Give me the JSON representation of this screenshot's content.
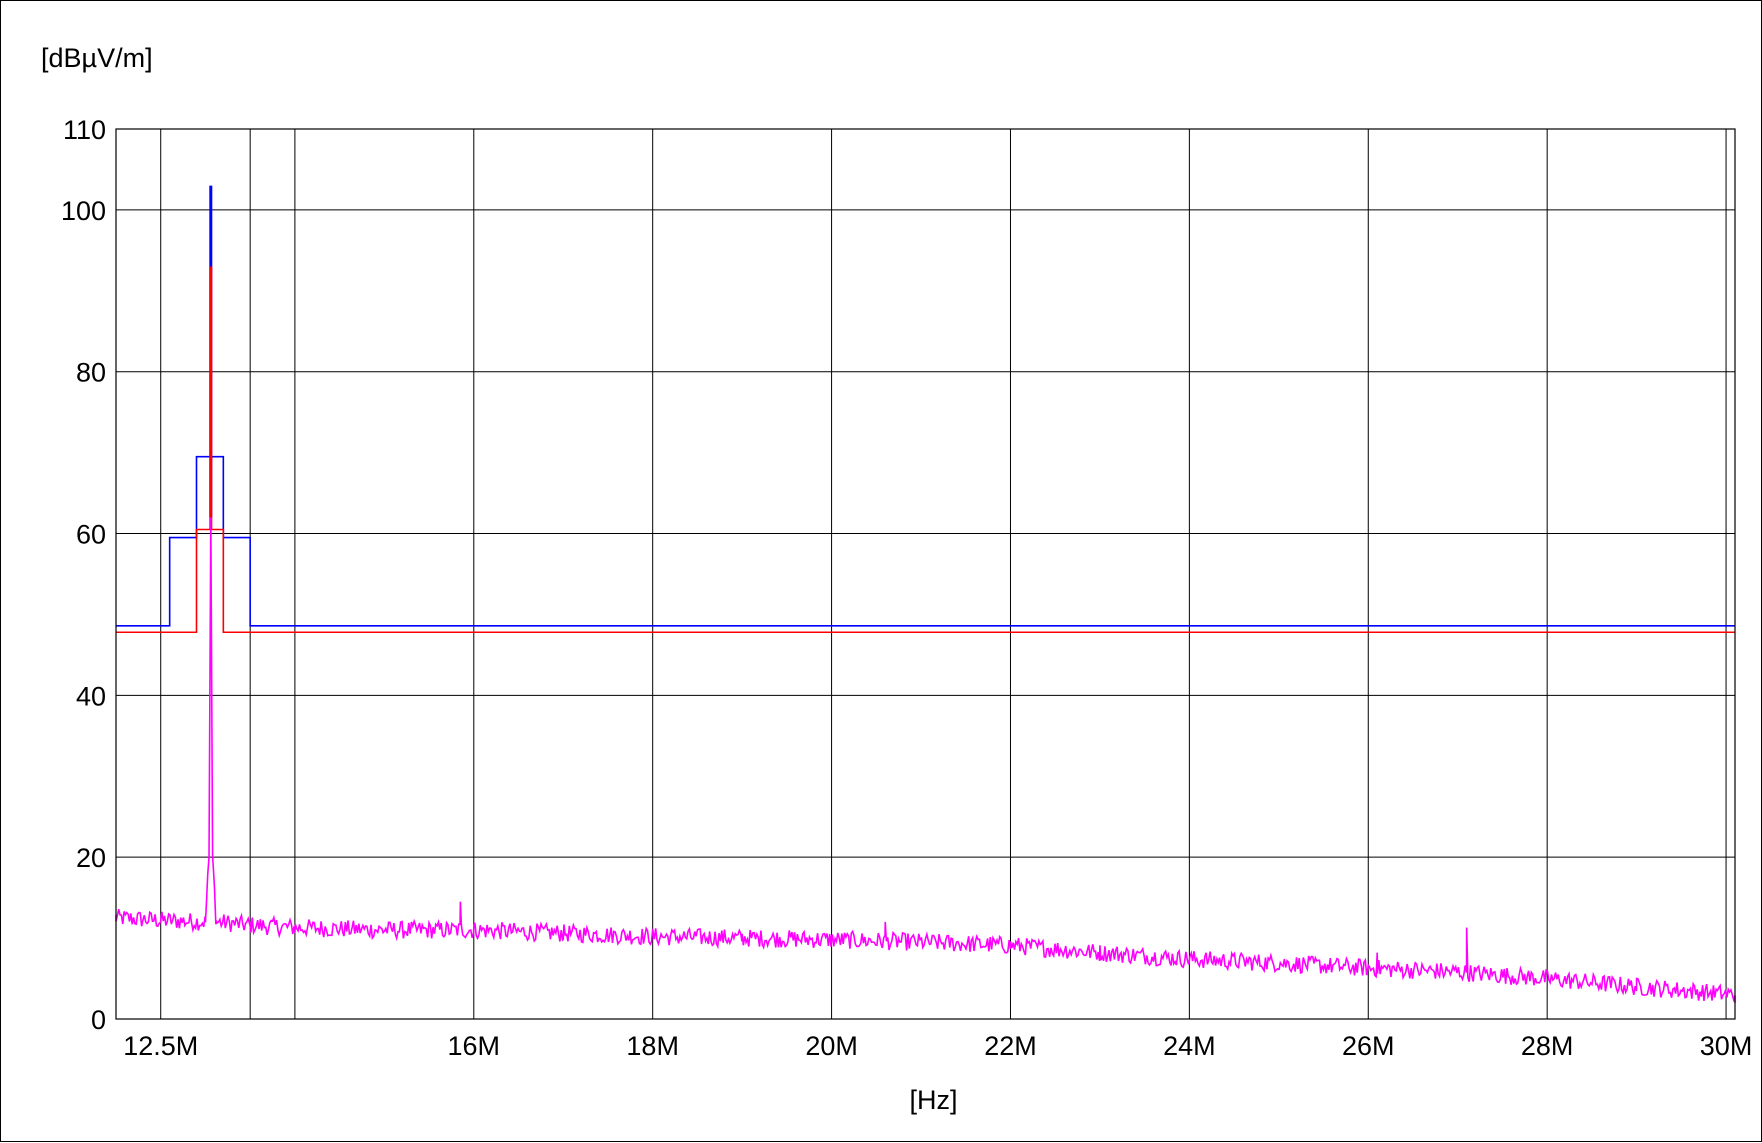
{
  "chart_data": {
    "type": "line",
    "title": "",
    "xlabel": "[Hz]",
    "ylabel": "[dBµV/m]",
    "xlim": [
      12000000,
      30100000
    ],
    "ylim": [
      0,
      110
    ],
    "grid": true,
    "x_ticks": [
      {
        "value": 12500000,
        "label": "12.5M"
      },
      {
        "value": 16000000,
        "label": "16M"
      },
      {
        "value": 18000000,
        "label": "18M"
      },
      {
        "value": 20000000,
        "label": "20M"
      },
      {
        "value": 22000000,
        "label": "22M"
      },
      {
        "value": 24000000,
        "label": "24M"
      },
      {
        "value": 26000000,
        "label": "26M"
      },
      {
        "value": 28000000,
        "label": "28M"
      },
      {
        "value": 30000000,
        "label": "30M"
      }
    ],
    "x_extra_gridlines": [
      13500000,
      14000000
    ],
    "y_ticks": [
      {
        "value": 0,
        "label": "0"
      },
      {
        "value": 20,
        "label": "20"
      },
      {
        "value": 40,
        "label": "40"
      },
      {
        "value": 60,
        "label": "60"
      },
      {
        "value": 80,
        "label": "80"
      },
      {
        "value": 100,
        "label": "100"
      },
      {
        "value": 110,
        "label": "110"
      }
    ],
    "series": [
      {
        "name": "",
        "color": "#0000ff",
        "x": [
          12000000,
          12600000,
          12600000,
          12900000,
          12900000,
          13200000,
          13200000,
          13500000,
          13500000,
          30100000
        ],
        "y": [
          48.6,
          48.6,
          59.5,
          59.5,
          69.5,
          69.5,
          59.5,
          59.5,
          48.6,
          48.6
        ]
      },
      {
        "name": "",
        "color": "#ff0000",
        "x": [
          12000000,
          12900000,
          12900000,
          13200000,
          13200000,
          30100000
        ],
        "y": [
          47.8,
          47.8,
          60.5,
          60.5,
          47.8,
          47.8
        ]
      },
      {
        "name": "",
        "color": "#0000ff",
        "x": [
          13060000,
          13060000
        ],
        "y": [
          62,
          103
        ]
      },
      {
        "name": "",
        "color": "#ff0000",
        "x": [
          13060000,
          13060000
        ],
        "y": [
          60.5,
          93
        ]
      },
      {
        "name": "",
        "color": "#ff00ff",
        "trace_points": 1200,
        "x": [
          12000000,
          12500000,
          13000000,
          13040000,
          13060000,
          13080000,
          13120000,
          13500000,
          14000000,
          15000000,
          16000000,
          17000000,
          18000000,
          19000000,
          20000000,
          21000000,
          22000000,
          23000000,
          24000000,
          25000000,
          26000000,
          27000000,
          28000000,
          29000000,
          30100000
        ],
        "y": [
          12.5,
          12.2,
          12.0,
          20.0,
          62.0,
          20.0,
          12.0,
          11.6,
          11.3,
          11.0,
          11.0,
          10.6,
          10.2,
          10.0,
          9.8,
          9.5,
          9.1,
          8.2,
          7.4,
          6.9,
          6.3,
          5.8,
          5.0,
          4.0,
          3.0
        ],
        "spikes": [
          {
            "x": 27100000,
            "y": 11.3
          },
          {
            "x": 15850000,
            "y": 14.5
          },
          {
            "x": 20600000,
            "y": 12.0
          },
          {
            "x": 26100000,
            "y": 8.2
          }
        ]
      }
    ]
  }
}
